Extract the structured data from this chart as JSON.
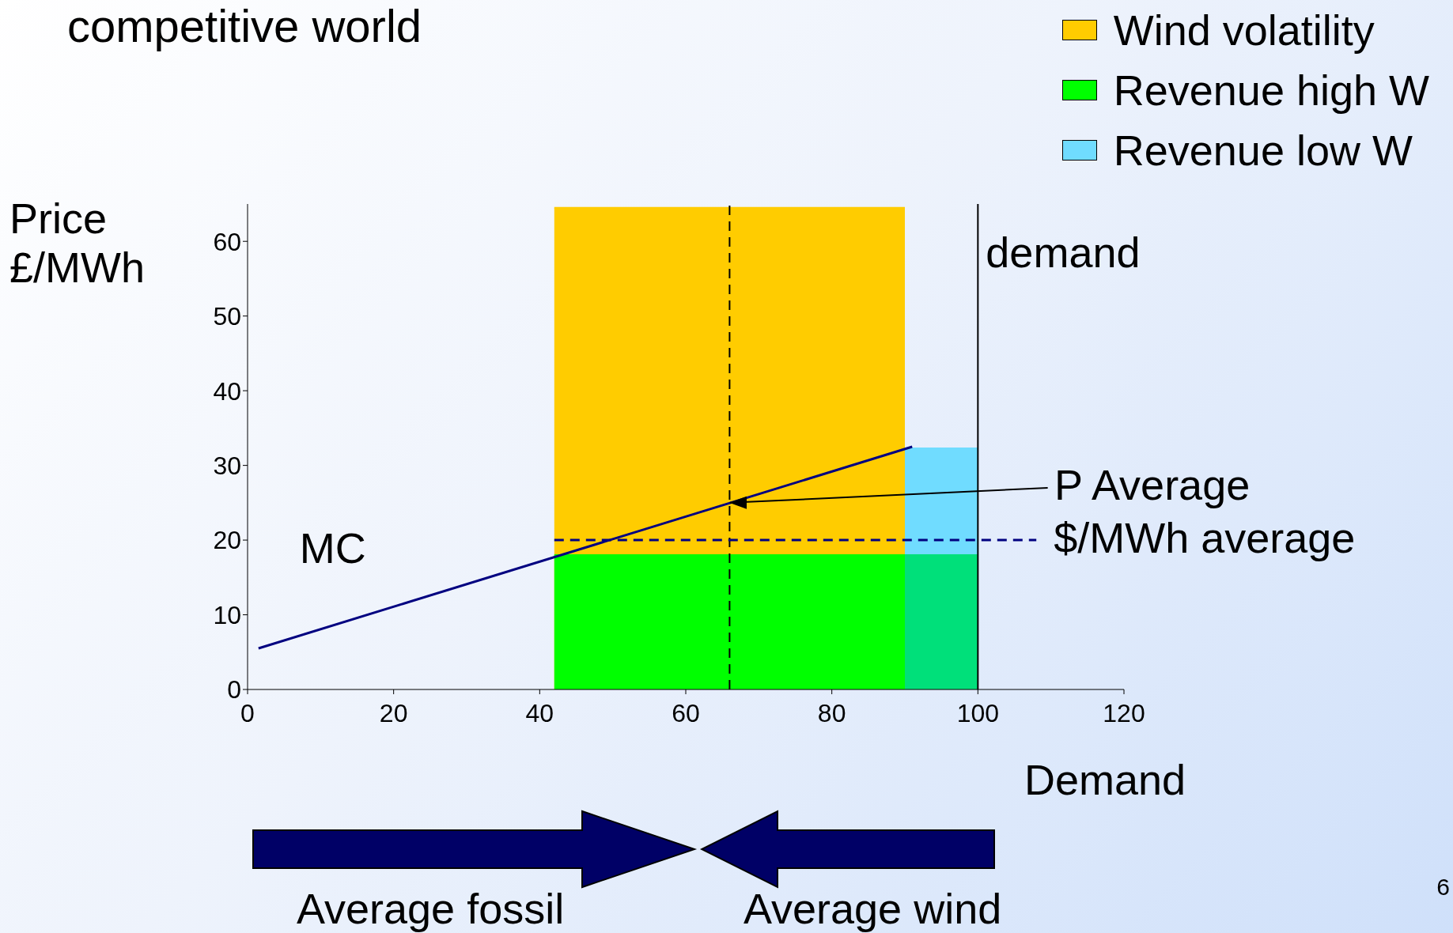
{
  "chart_data": {
    "type": "area",
    "title": "competitive world",
    "xlabel": "Demand",
    "ylabel": "Price £/MWh",
    "xlim": [
      0,
      120
    ],
    "xticks": [
      0,
      20,
      40,
      60,
      80,
      100,
      120
    ],
    "ylim": [
      0,
      65
    ],
    "yticks": [
      0,
      10,
      20,
      30,
      40,
      50,
      60
    ],
    "grid": false,
    "legend": "top right",
    "series": [
      {
        "name": "Wind volatility",
        "type": "area",
        "color": "#ffcc00",
        "x": [
          42,
          90
        ],
        "values": [
          64.5,
          64.5
        ]
      },
      {
        "name": "Revenue high W",
        "type": "area",
        "color": "#00ff00",
        "x": [
          42,
          90
        ],
        "values": [
          18,
          18
        ]
      },
      {
        "name": "Revenue low W",
        "type": "area",
        "color": "#70dcff",
        "x": [
          90,
          100
        ],
        "values": [
          32.3,
          32.3
        ]
      },
      {
        "type": "area",
        "color": "#00e07a",
        "x": [
          90,
          100
        ],
        "values": [
          18,
          18
        ]
      },
      {
        "name": "MC",
        "type": "line",
        "color": "#000080",
        "x": [
          1.5,
          91
        ],
        "values": [
          5.5,
          32.5
        ]
      },
      {
        "name": "$/MWh average",
        "type": "line",
        "color": "#000080",
        "line_style": "dashed",
        "x": [
          42,
          108
        ],
        "values": [
          20,
          20
        ]
      }
    ],
    "ref_lines": [
      {
        "axis": "x",
        "value": 66,
        "line_style": "dashed",
        "color": "#000000"
      },
      {
        "axis": "x",
        "value": 100,
        "label": "demand",
        "color": "#000000"
      }
    ],
    "annotations": [
      {
        "text": "P Average",
        "x": 66,
        "y": 25
      },
      "Average fossil",
      "Average wind",
      "6"
    ]
  }
}
